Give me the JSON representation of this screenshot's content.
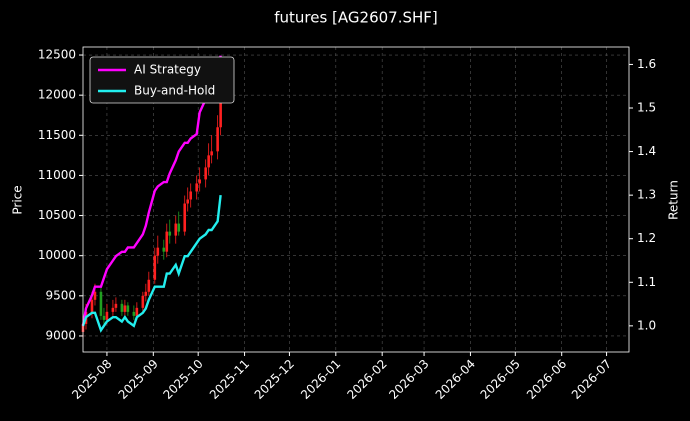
{
  "chart_data": {
    "type": "candlestick",
    "title": "futures [AG2607.SHF]",
    "ylabel": "Price",
    "y2label": "Return",
    "x": [
      "2025-07-16",
      "2025-07-18",
      "2025-07-22",
      "2025-07-24",
      "2025-07-28",
      "2025-07-30",
      "2025-08-01",
      "2025-08-05",
      "2025-08-07",
      "2025-08-11",
      "2025-08-13",
      "2025-08-15",
      "2025-08-19",
      "2025-08-21",
      "2025-08-25",
      "2025-08-27",
      "2025-08-29",
      "2025-09-02",
      "2025-09-04",
      "2025-09-08",
      "2025-09-10",
      "2025-09-12",
      "2025-09-16",
      "2025-09-18",
      "2025-09-22",
      "2025-09-24",
      "2025-09-26",
      "2025-09-30",
      "2025-10-02",
      "2025-10-06",
      "2025-10-08",
      "2025-10-10",
      "2025-10-14",
      "2025-10-16"
    ],
    "open": [
      9050,
      9150,
      9300,
      9450,
      9550,
      9250,
      9200,
      9300,
      9350,
      9400,
      9300,
      9380,
      9300,
      9250,
      9350,
      9500,
      9550,
      9700,
      10000,
      10100,
      10050,
      10300,
      10250,
      10400,
      10300,
      10650,
      10700,
      10800,
      10900,
      10950,
      11100,
      11250,
      11300,
      11600
    ],
    "high": [
      9250,
      9400,
      9550,
      9650,
      9600,
      9350,
      9400,
      9450,
      9480,
      9450,
      9450,
      9420,
      9380,
      9420,
      9550,
      9650,
      9800,
      10100,
      10250,
      10200,
      10400,
      10450,
      10500,
      10550,
      10750,
      10850,
      10900,
      11000,
      11100,
      11200,
      11400,
      11500,
      11750,
      12350
    ],
    "low": [
      8980,
      9080,
      9220,
      9380,
      9200,
      9150,
      9150,
      9250,
      9300,
      9250,
      9250,
      9250,
      9200,
      9200,
      9300,
      9430,
      9500,
      9650,
      9900,
      9950,
      9980,
      10150,
      10150,
      10250,
      10250,
      10550,
      10600,
      10700,
      10800,
      10850,
      11000,
      11150,
      11200,
      11500
    ],
    "close": [
      9150,
      9300,
      9450,
      9550,
      9250,
      9200,
      9300,
      9350,
      9400,
      9300,
      9380,
      9300,
      9250,
      9350,
      9500,
      9550,
      9700,
      10000,
      10100,
      10050,
      10300,
      10250,
      10400,
      10300,
      10650,
      10700,
      10800,
      10900,
      10950,
      11100,
      11250,
      11300,
      11600,
      12100
    ],
    "up_color": "#ff2020",
    "down_color": "#20a020",
    "series": [
      {
        "name": "AI Strategy",
        "color": "#ff00ff",
        "axis": "y2",
        "values": [
          1.0,
          1.04,
          1.07,
          1.09,
          1.09,
          1.11,
          1.13,
          1.15,
          1.16,
          1.17,
          1.17,
          1.18,
          1.18,
          1.19,
          1.21,
          1.23,
          1.26,
          1.31,
          1.32,
          1.33,
          1.33,
          1.35,
          1.38,
          1.4,
          1.42,
          1.42,
          1.43,
          1.44,
          1.49,
          1.52,
          1.53,
          1.54,
          1.57,
          1.62
        ]
      },
      {
        "name": "Buy-and-Hold",
        "color": "#22eeee",
        "axis": "y2",
        "values": [
          1.0,
          1.02,
          1.03,
          1.03,
          0.99,
          1.0,
          1.01,
          1.02,
          1.02,
          1.01,
          1.02,
          1.01,
          1.0,
          1.02,
          1.03,
          1.04,
          1.06,
          1.09,
          1.09,
          1.09,
          1.12,
          1.12,
          1.14,
          1.12,
          1.16,
          1.16,
          1.17,
          1.19,
          1.2,
          1.21,
          1.22,
          1.22,
          1.24,
          1.3
        ]
      }
    ],
    "xlim": [
      "2025-07-16",
      "2026-07-16"
    ],
    "xticks": [
      {
        "value": "2025-08-01",
        "label": "2025-08"
      },
      {
        "value": "2025-09-01",
        "label": "2025-09"
      },
      {
        "value": "2025-10-01",
        "label": "2025-10"
      },
      {
        "value": "2025-11-01",
        "label": "2025-11"
      },
      {
        "value": "2025-12-01",
        "label": "2025-12"
      },
      {
        "value": "2026-01-01",
        "label": "2026-01"
      },
      {
        "value": "2026-02-01",
        "label": "2026-02"
      },
      {
        "value": "2026-03-01",
        "label": "2026-03"
      },
      {
        "value": "2026-04-01",
        "label": "2026-04"
      },
      {
        "value": "2026-05-01",
        "label": "2026-05"
      },
      {
        "value": "2026-06-01",
        "label": "2026-06"
      },
      {
        "value": "2026-07-01",
        "label": "2026-07"
      }
    ],
    "ylim": [
      8800,
      12600
    ],
    "yticks": [
      9000,
      9500,
      10000,
      10500,
      11000,
      11500,
      12000,
      12500
    ],
    "y2lim": [
      0.94,
      1.64
    ],
    "y2ticks": [
      {
        "value": 1,
        "label": "1.0"
      },
      1.1,
      1.2,
      1.3,
      1.4,
      1.5,
      1.6
    ],
    "grid": true,
    "legend": "upper left"
  }
}
